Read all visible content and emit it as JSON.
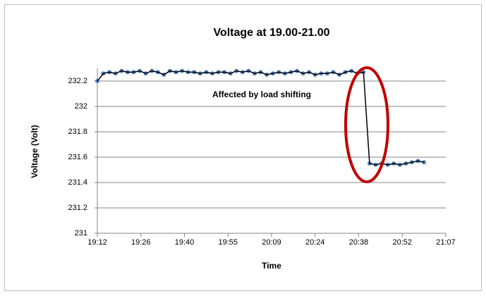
{
  "chart_data": {
    "type": "line",
    "title": "Voltage at 19.00-21.00",
    "x_label": "Time",
    "y_label": "Voltage (Volt)",
    "annotation": "Affected by load shifting",
    "annotation_color": "#c00000",
    "x": [
      1152,
      1154,
      1156,
      1158,
      1160,
      1162,
      1164,
      1166,
      1168,
      1170,
      1172,
      1174,
      1176,
      1178,
      1180,
      1182,
      1184,
      1186,
      1188,
      1190,
      1192,
      1194,
      1196,
      1198,
      1200,
      1202,
      1204,
      1206,
      1208,
      1210,
      1212,
      1214,
      1216,
      1218,
      1220,
      1222,
      1224,
      1226,
      1228,
      1230,
      1232,
      1234,
      1236,
      1238,
      1240,
      1242,
      1244,
      1246,
      1248,
      1250,
      1252,
      1254,
      1256,
      1258,
      1260
    ],
    "series": [
      {
        "color": "#4f81bd",
        "line_color": "#000000",
        "values": [
          232.2,
          232.26,
          232.27,
          232.26,
          232.28,
          232.27,
          232.27,
          232.28,
          232.26,
          232.28,
          232.27,
          232.25,
          232.28,
          232.27,
          232.28,
          232.27,
          232.27,
          232.26,
          232.27,
          232.26,
          232.27,
          232.27,
          232.26,
          232.28,
          232.27,
          232.28,
          232.26,
          232.27,
          232.25,
          232.26,
          232.27,
          232.26,
          232.27,
          232.28,
          232.26,
          232.27,
          232.25,
          232.26,
          232.26,
          232.27,
          232.25,
          232.27,
          232.28,
          232.26,
          232.27,
          231.55,
          231.54,
          231.55,
          231.54,
          231.55,
          231.54,
          231.55,
          231.56,
          231.57,
          231.56
        ]
      }
    ],
    "xlim": [
      1152,
      1267.2
    ],
    "xticks": [
      {
        "value": 1152,
        "label": "19:12"
      },
      {
        "value": 1166.4,
        "label": "19:26"
      },
      {
        "value": 1180.8,
        "label": "19:40"
      },
      {
        "value": 1195.2,
        "label": "19:55"
      },
      {
        "value": 1209.6,
        "label": "20:09"
      },
      {
        "value": 1224,
        "label": "20:24"
      },
      {
        "value": 1238.4,
        "label": "20:38"
      },
      {
        "value": 1252.8,
        "label": "20:52"
      },
      {
        "value": 1267.2,
        "label": "21:07"
      }
    ],
    "ylim": [
      231,
      232.3
    ],
    "yticks": [
      231,
      231.2,
      231.4,
      231.6,
      231.8,
      232,
      232.2
    ],
    "grid": true
  }
}
